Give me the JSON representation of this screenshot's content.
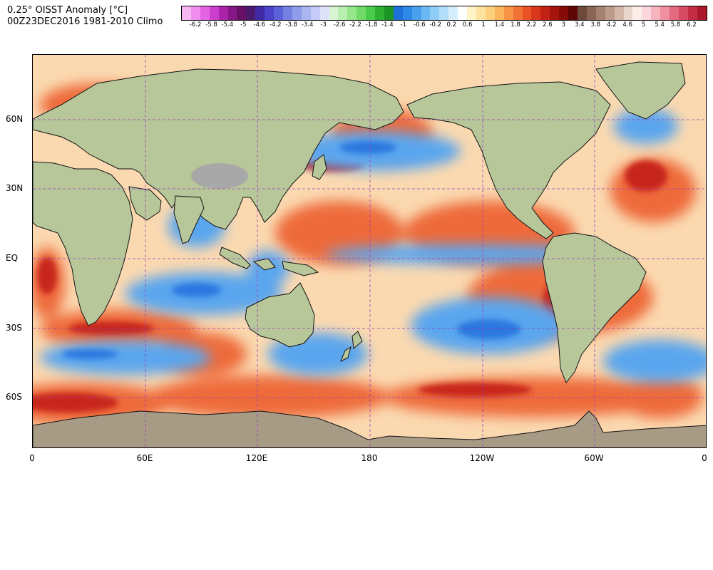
{
  "header": {
    "title_line1": "0.25° OISST Anomaly [°C]",
    "title_line2": "00Z23DEC2016 1981-2010 Climo"
  },
  "colorbar": {
    "colors": [
      "#f7b7f2",
      "#f08ef0",
      "#e463e4",
      "#cc3fcc",
      "#aa23a8",
      "#861787",
      "#661066",
      "#4b1a6e",
      "#3f2aa4",
      "#4a42c8",
      "#5b62d8",
      "#7480e2",
      "#8f9cea",
      "#aab6f2",
      "#c6ccf7",
      "#dfe3fa",
      "#d8f5d3",
      "#b9eeb1",
      "#95e58a",
      "#70d968",
      "#4bcb4a",
      "#2fb033",
      "#1c9426",
      "#1f6fd8",
      "#2e88e6",
      "#49a1ee",
      "#6ab8f4",
      "#8dcdf8",
      "#b2def9",
      "#d6eefb",
      "#ffffff",
      "#fff3c8",
      "#fde3a0",
      "#fcd07c",
      "#fab55c",
      "#f79447",
      "#f27135",
      "#ea5125",
      "#d9371b",
      "#c22214",
      "#a6140e",
      "#860c0a",
      "#5e0605",
      "#6e4a3c",
      "#8a6556",
      "#a3806f",
      "#bc9b8b",
      "#d3b8aa",
      "#e8d5cb",
      "#fbeee9",
      "#fbd6dc",
      "#f6b4bf",
      "#ef8f9f",
      "#e46a80",
      "#d64b63",
      "#c32e46",
      "#aa1a2c"
    ],
    "labels": [
      "-6.2",
      "-5.8",
      "-5.4",
      "-5",
      "-4.6",
      "-4.2",
      "-3.8",
      "-3.4",
      "-3",
      "-2.6",
      "-2.2",
      "-1.8",
      "-1.4",
      "-1",
      "-0.6",
      "-0.2",
      "0.2",
      "0.6",
      "1",
      "1.4",
      "1.8",
      "2.2",
      "2.6",
      "3",
      "3.4",
      "3.8",
      "4.2",
      "4.6",
      "5",
      "5.4",
      "5.8",
      "6.2"
    ]
  },
  "map": {
    "x_ticks": [
      "0",
      "60E",
      "120E",
      "180",
      "120W",
      "60W",
      "0"
    ],
    "y_ticks": [
      "60N",
      "30N",
      "EQ",
      "30S",
      "60S"
    ],
    "grid": true,
    "grid_style": "dashed",
    "grid_color": "#9a3fb8",
    "projection": "equirectangular, 0° to 360° longitude",
    "ocean_base_color": "#fbd9b0",
    "warm_anomaly_color": "#ee6a3a",
    "strong_warm_color": "#c8281e",
    "cool_anomaly_color": "#5aa6ee",
    "strong_cool_color": "#2a78e0",
    "land_color": "#b7c79a",
    "antarctica_color": "#a89b86",
    "tibet_color": "#a8a8a8"
  }
}
